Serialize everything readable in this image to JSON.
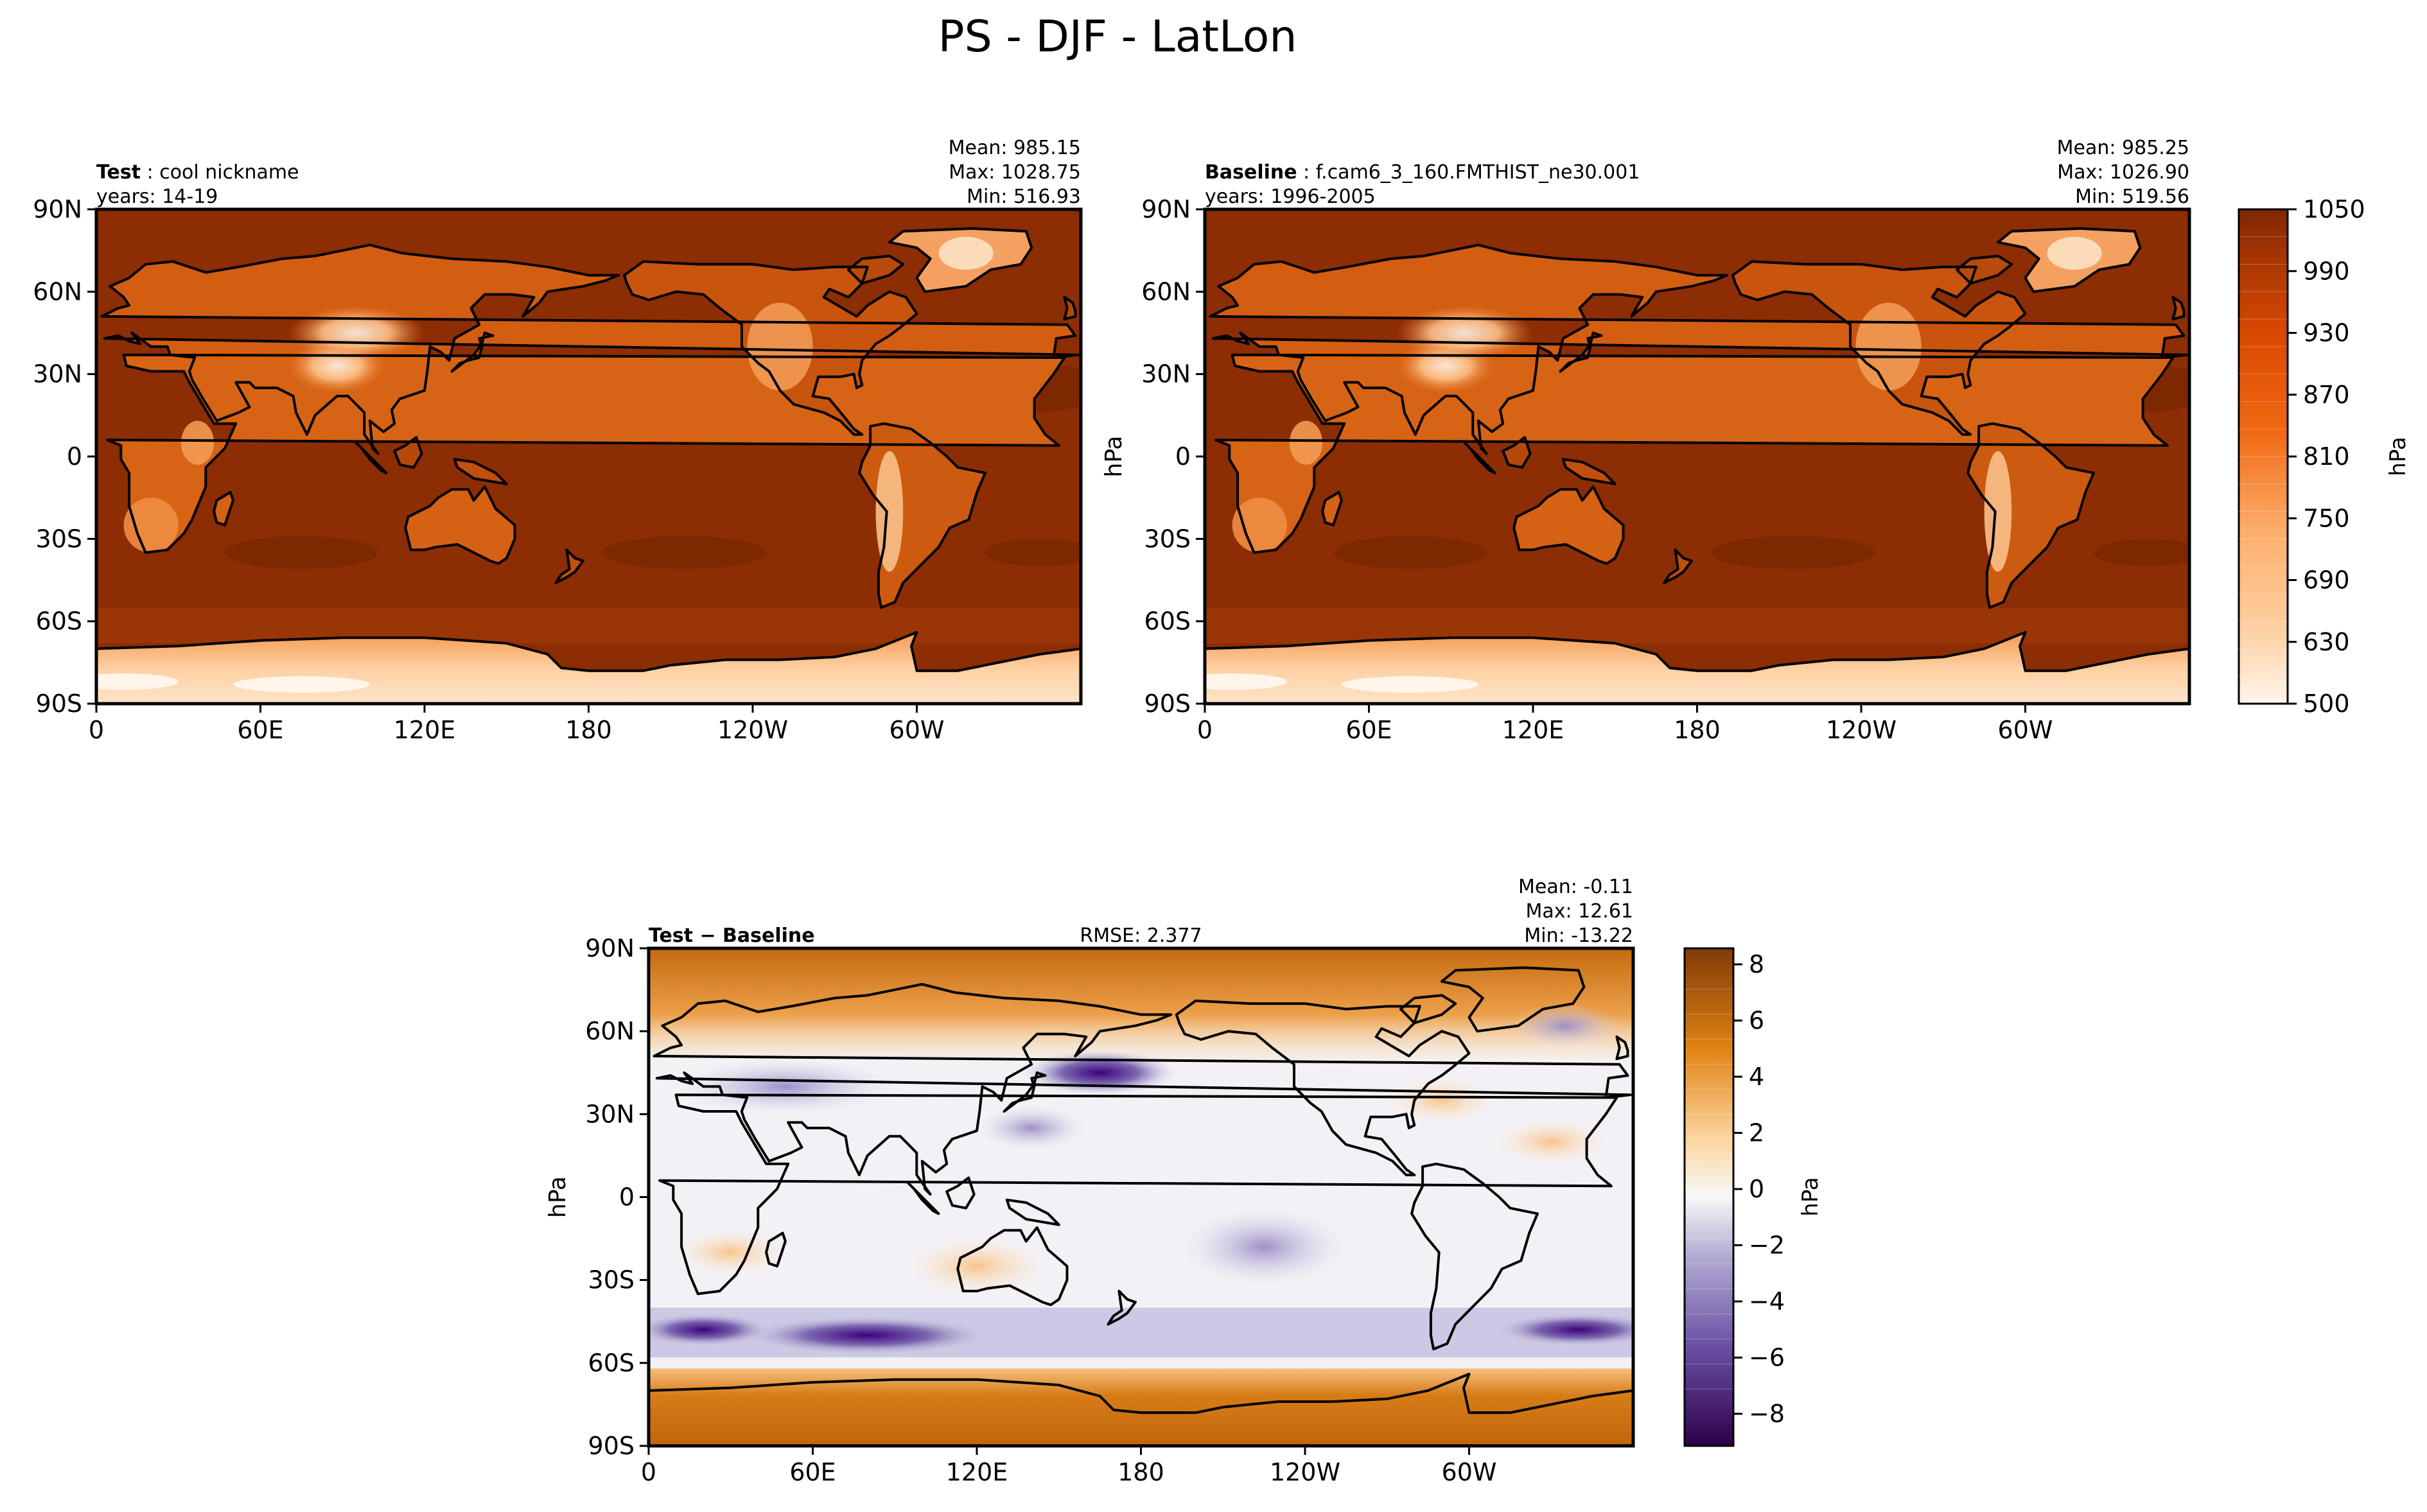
{
  "figure": {
    "title": "PS - DJF - LatLon"
  },
  "chart_data": [
    {
      "type": "heatmap",
      "label": "Test",
      "name": "cool nickname",
      "years": "years: 14-19",
      "stats": {
        "mean": "Mean: 985.15",
        "max": "Max: 1028.75",
        "min": "Min: 516.93"
      },
      "xticks": [
        "0",
        "60E",
        "120E",
        "180",
        "120W",
        "60W"
      ],
      "yticks": [
        "90N",
        "60N",
        "30N",
        "0",
        "30S",
        "60S",
        "90S"
      ],
      "xlim": [
        0,
        360
      ],
      "ylim": [
        -90,
        90
      ],
      "ylabel": "",
      "colormap": "oranges",
      "vmin": 500,
      "vmax": 1050
    },
    {
      "type": "heatmap",
      "label": "Baseline",
      "name": "f.cam6_3_160.FMTHIST_ne30.001",
      "years": "years: 1996-2005",
      "stats": {
        "mean": "Mean: 985.25",
        "max": "Max: 1026.90",
        "min": "Min: 519.56"
      },
      "xticks": [
        "0",
        "60E",
        "120E",
        "180",
        "120W",
        "60W"
      ],
      "yticks": [
        "90N",
        "60N",
        "30N",
        "0",
        "30S",
        "60S",
        "90S"
      ],
      "xlim": [
        0,
        360
      ],
      "ylim": [
        -90,
        90
      ],
      "ylabel": "hPa",
      "colormap": "oranges",
      "vmin": 500,
      "vmax": 1050
    },
    {
      "type": "heatmap",
      "label": "Test − Baseline",
      "rmse": "RMSE: 2.377",
      "stats": {
        "mean": "Mean: -0.11",
        "max": "Max: 12.61",
        "min": "Min: -13.22"
      },
      "xticks": [
        "0",
        "60E",
        "120E",
        "180",
        "120W",
        "60W"
      ],
      "yticks": [
        "90N",
        "60N",
        "30N",
        "0",
        "30S",
        "60S",
        "90S"
      ],
      "xlim": [
        0,
        360
      ],
      "ylim": [
        -90,
        90
      ],
      "ylabel": "hPa",
      "colormap": "purple-orange diverging",
      "vmin": -9,
      "vmax": 9
    }
  ],
  "colorbars": {
    "abs": {
      "ticks": [
        "1050",
        "990",
        "930",
        "870",
        "810",
        "750",
        "690",
        "630",
        "500"
      ],
      "label": "hPa"
    },
    "diff": {
      "ticks": [
        "8",
        "6",
        "4",
        "2",
        "0",
        "−2",
        "−4",
        "−6",
        "−8"
      ],
      "label": "hPa"
    }
  },
  "colors": {
    "ocean_abs": "#8c2d04",
    "ocean_abs_dark": "#7a2703",
    "land_mid": "#d35e12",
    "land_light": "#f7a35c",
    "highland": "#fdd0a2",
    "antarctic": "#fde7cf",
    "diff_neutral": "#f3f1f5",
    "diff_pos": "#e08214",
    "diff_neg": "#6a51a3"
  }
}
